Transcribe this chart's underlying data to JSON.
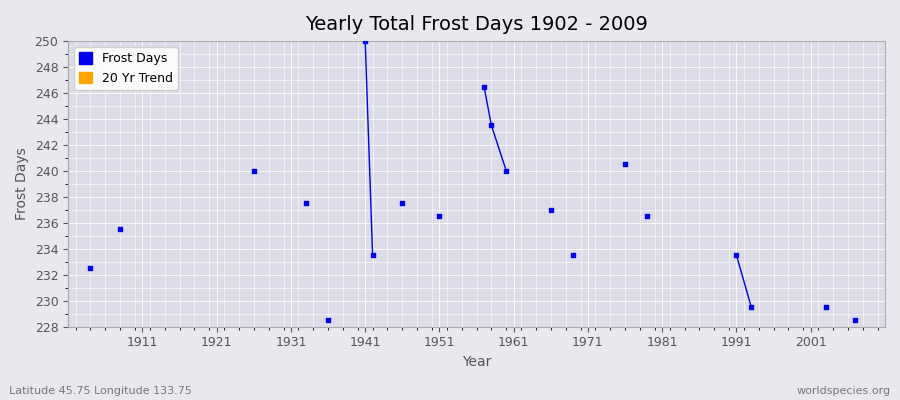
{
  "title": "Yearly Total Frost Days 1902 - 2009",
  "xlabel": "Year",
  "ylabel": "Frost Days",
  "xlim": [
    1901,
    2011
  ],
  "ylim": [
    228,
    250
  ],
  "yticks": [
    228,
    230,
    232,
    234,
    236,
    238,
    240,
    242,
    244,
    246,
    248,
    250
  ],
  "xticks": [
    1911,
    1921,
    1931,
    1941,
    1951,
    1961,
    1971,
    1981,
    1991,
    2001
  ],
  "background_color": "#e8e8ef",
  "plot_bg_color": "#dcdce8",
  "grid_color": "#ffffff",
  "frost_days_color": "#0000ee",
  "trend_color": "#ffa500",
  "frost_points": [
    [
      1904,
      232.5
    ],
    [
      1908,
      235.5
    ],
    [
      1926,
      240.0
    ],
    [
      1933,
      237.5
    ],
    [
      1936,
      228.5
    ],
    [
      1941,
      250.0
    ],
    [
      1942,
      233.5
    ],
    [
      1946,
      237.5
    ],
    [
      1951,
      236.5
    ],
    [
      1957,
      246.5
    ],
    [
      1958,
      243.5
    ],
    [
      1960,
      240.0
    ],
    [
      1966,
      237.0
    ],
    [
      1969,
      233.5
    ],
    [
      1976,
      240.5
    ],
    [
      1979,
      236.5
    ],
    [
      1991,
      233.5
    ],
    [
      1993,
      229.5
    ],
    [
      2003,
      229.5
    ],
    [
      2007,
      228.5
    ]
  ],
  "line_segments": [
    [
      [
        1941,
        250.0
      ],
      [
        1942,
        233.5
      ]
    ],
    [
      [
        1957,
        246.5
      ],
      [
        1958,
        243.5
      ],
      [
        1960,
        240.0
      ]
    ],
    [
      [
        1991,
        233.5
      ],
      [
        1993,
        229.5
      ]
    ]
  ],
  "footnote_left": "Latitude 45.75 Longitude 133.75",
  "footnote_right": "worldspecies.org",
  "title_fontsize": 14,
  "label_fontsize": 10,
  "tick_fontsize": 9,
  "footnote_fontsize": 8
}
